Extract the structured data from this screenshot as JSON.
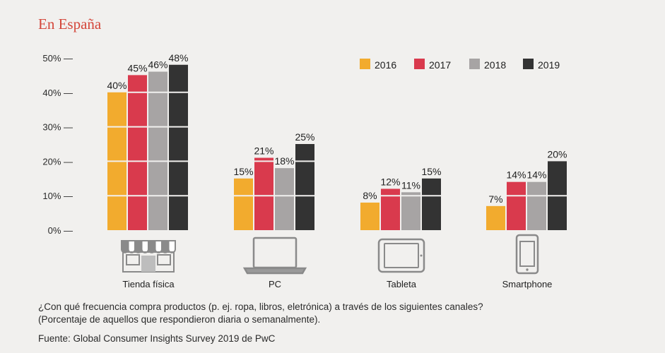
{
  "heading": "En España",
  "chart_data": {
    "type": "bar",
    "categories": [
      "Tienda física",
      "PC",
      "Tableta",
      "Smartphone"
    ],
    "series": [
      {
        "name": "2016",
        "color": "#f2ab2e",
        "values": [
          40,
          15,
          8,
          7
        ],
        "labels": [
          "40%",
          "15%",
          "8%",
          "7%"
        ]
      },
      {
        "name": "2017",
        "color": "#d93a4d",
        "values": [
          45,
          21,
          12,
          14
        ],
        "labels": [
          "45%",
          "21%",
          "12%",
          "14%"
        ]
      },
      {
        "name": "2018",
        "color": "#a7a4a4",
        "values": [
          46,
          18,
          11,
          14
        ],
        "labels": [
          "46%",
          "18%",
          "11%",
          "14%"
        ]
      },
      {
        "name": "2019",
        "color": "#333333",
        "values": [
          48,
          25,
          15,
          20
        ],
        "labels": [
          "48%",
          "25%",
          "15%",
          "20%"
        ]
      }
    ],
    "ylim": [
      0,
      50
    ],
    "yticks": [
      {
        "value": 0,
        "label": "0% —"
      },
      {
        "value": 10,
        "label": "10% —"
      },
      {
        "value": 20,
        "label": "20% —"
      },
      {
        "value": 30,
        "label": "30% —"
      },
      {
        "value": 40,
        "label": "40% —"
      },
      {
        "value": 50,
        "label": "50% —"
      }
    ],
    "category_icons": [
      "storefront-icon",
      "laptop-icon",
      "tablet-icon",
      "smartphone-icon"
    ],
    "legend_position": "top-right",
    "grid": false
  },
  "footnotes": {
    "question": "¿Con qué frecuencia compra productos (p. ej. ropa, libros, eletrónica) a través de los siguientes canales?",
    "note": "(Porcentaje de aquellos que respondieron diaria o semanalmente).",
    "source": "Fuente: Global Consumer Insights Survey 2019 de PwC"
  }
}
